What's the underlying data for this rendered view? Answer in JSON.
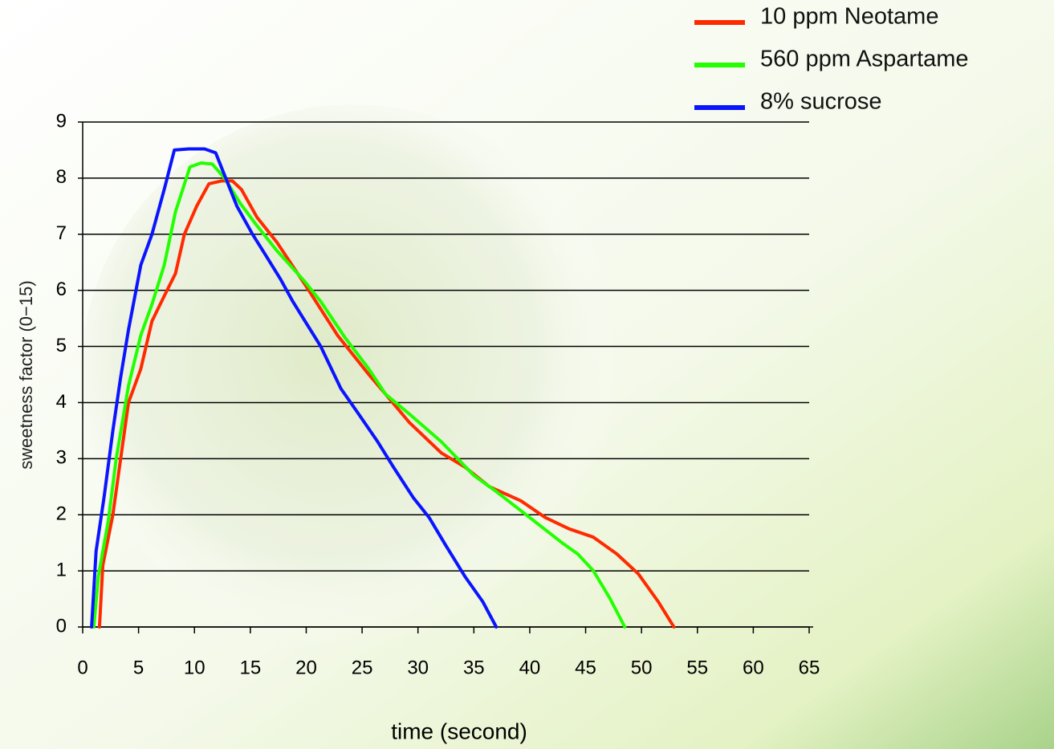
{
  "chart_data": {
    "type": "line",
    "x_label": "time (second)",
    "y_label": "sweetness factor  (0−15)",
    "xlim": [
      0,
      65
    ],
    "xticks": [
      0,
      5,
      10,
      15,
      20,
      25,
      30,
      35,
      40,
      45,
      50,
      55,
      60,
      65
    ],
    "ylim": [
      0,
      9
    ],
    "yticks": [
      0,
      1,
      2,
      3,
      4,
      5,
      6,
      7,
      8,
      9
    ],
    "grid": true,
    "legend": "top-right",
    "series": [
      {
        "name": "10 ppm Neotame",
        "color": "#ff2a00",
        "x": [
          1.5,
          1.8,
          2.7,
          3.4,
          4.1,
          5.2,
          6.2,
          7.3,
          8.3,
          9.1,
          10.2,
          11.3,
          12.4,
          13.4,
          14.2,
          15.6,
          17.4,
          19.9,
          22.8,
          25.6,
          27.1,
          29.2,
          32.1,
          34.2,
          36.4,
          39.2,
          41.4,
          43.5,
          45.7,
          47.8,
          49.7,
          51.5,
          52.9
        ],
        "values": [
          0,
          1.1,
          2,
          3,
          4,
          4.6,
          5.45,
          5.9,
          6.3,
          7,
          7.5,
          7.9,
          7.95,
          7.95,
          7.8,
          7.3,
          6.85,
          6.1,
          5.2,
          4.5,
          4.15,
          3.65,
          3.1,
          2.85,
          2.5,
          2.25,
          1.95,
          1.75,
          1.6,
          1.3,
          0.95,
          0.45,
          0
        ]
      },
      {
        "name": "560 ppm Aspartame",
        "color": "#22ff00",
        "x": [
          1,
          1.4,
          2.3,
          3,
          4.1,
          5.2,
          6.2,
          7.3,
          8.3,
          9.6,
          10.6,
          11.6,
          12.7,
          14.1,
          15.6,
          17.4,
          19.9,
          21.3,
          23.5,
          25.6,
          27.1,
          29.2,
          32.1,
          35,
          37.1,
          40,
          42.9,
          44.3,
          45.7,
          47.2,
          48.5
        ],
        "values": [
          0,
          0.9,
          1.9,
          3,
          4.3,
          5.2,
          5.75,
          6.45,
          7.4,
          8.2,
          8.27,
          8.25,
          8,
          7.55,
          7.15,
          6.7,
          6.15,
          5.8,
          5.15,
          4.6,
          4.15,
          3.8,
          3.3,
          2.7,
          2.4,
          1.95,
          1.5,
          1.3,
          1,
          0.5,
          0
        ]
      },
      {
        "name": "8% sucrose",
        "color": "#0a14ff",
        "x": [
          0.8,
          1.2,
          1.9,
          2.7,
          3.4,
          4.1,
          5.2,
          6.2,
          7.3,
          8.2,
          9.5,
          10.9,
          11.9,
          12.6,
          13.8,
          15.2,
          16.3,
          17.7,
          18.8,
          21.3,
          23.1,
          24.5,
          26.4,
          27.8,
          29.6,
          31,
          32.5,
          34.2,
          35.8,
          37
        ],
        "values": [
          0,
          1.35,
          2.3,
          3.5,
          4.45,
          5.3,
          6.45,
          7,
          7.8,
          8.5,
          8.52,
          8.52,
          8.45,
          8.1,
          7.5,
          7,
          6.65,
          6.2,
          5.8,
          5,
          4.25,
          3.85,
          3.3,
          2.85,
          2.3,
          1.95,
          1.45,
          0.9,
          0.45,
          0
        ]
      }
    ]
  }
}
